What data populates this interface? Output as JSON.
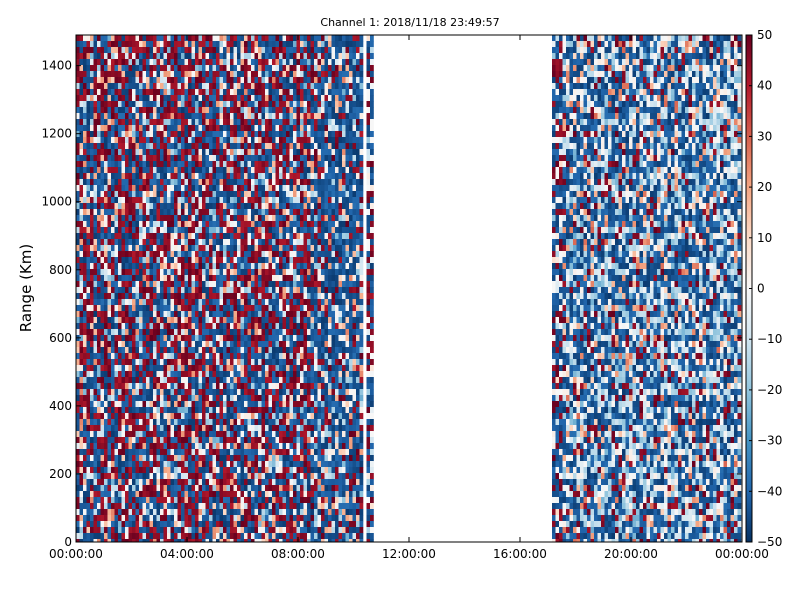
{
  "chart_data": {
    "type": "heatmap",
    "title": "Channel 1: 2018/11/18 23:49:57",
    "xlabel": "",
    "ylabel": "Range (Km)",
    "x_ticks": [
      "00:00:00",
      "04:00:00",
      "08:00:00",
      "12:00:00",
      "16:00:00",
      "20:00:00",
      "00:00:00"
    ],
    "x_range_hours": [
      0,
      24
    ],
    "y_ticks": [
      0,
      200,
      400,
      600,
      800,
      1000,
      1200,
      1400
    ],
    "ylim": [
      0,
      1490
    ],
    "colorbar": {
      "min": -50,
      "max": 50,
      "ticks": [
        50,
        40,
        30,
        20,
        10,
        0,
        -10,
        -20,
        -30,
        -40,
        -50
      ],
      "colormap": "RdBu_r",
      "low_color": "#053061",
      "mid_color": "#f7f7f7",
      "high_color": "#67001f"
    },
    "data_segments_hours": [
      {
        "start": 0.0,
        "end": 10.3,
        "character": "dense mixed, mostly extreme"
      },
      {
        "start": 10.5,
        "end": 10.75,
        "character": "single column"
      },
      {
        "start": 17.2,
        "end": 17.5,
        "character": "single column"
      },
      {
        "start": 17.5,
        "end": 24.0,
        "character": "mixed, mostly negative"
      }
    ],
    "empty_gap_hours": [
      10.75,
      17.2
    ],
    "grid": false
  }
}
